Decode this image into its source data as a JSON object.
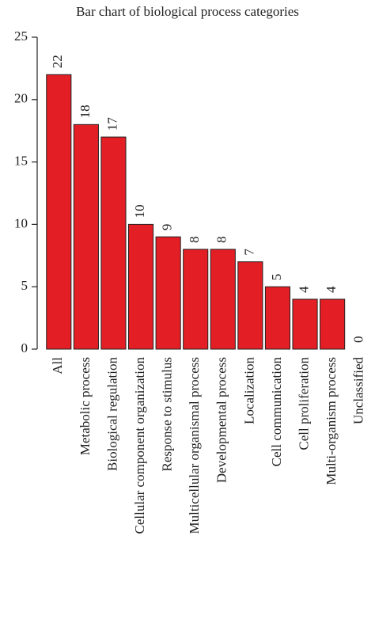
{
  "chart_data": {
    "type": "bar",
    "title": "Bar chart of biological process categories",
    "categories": [
      "All",
      "Metabolic process",
      "Biological regulation",
      "Cellular component organization",
      "Response to stimulus",
      "Multicellular organismal process",
      "Developmental process",
      "Localization",
      "Cell communication",
      "Cell proliferation",
      "Multi-organism process",
      "Unclassified"
    ],
    "values": [
      22,
      18,
      17,
      10,
      9,
      8,
      8,
      7,
      5,
      4,
      4,
      0
    ],
    "color": "#e31e24",
    "ylim": [
      0,
      25
    ],
    "yticks": [
      0,
      5,
      10,
      15,
      20,
      25
    ],
    "grid": false
  }
}
